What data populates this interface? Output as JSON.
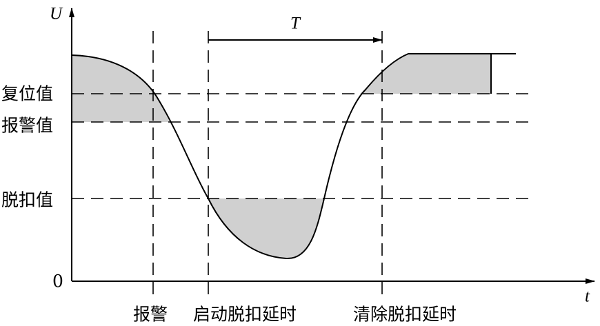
{
  "axes": {
    "y_label": "U",
    "x_label": "t",
    "origin": "0"
  },
  "levels": [
    "复位值",
    "报警值",
    "脱扣值"
  ],
  "events": [
    "报警",
    "启动脱扣延时",
    "清除脱扣延时"
  ],
  "interval": "T"
}
